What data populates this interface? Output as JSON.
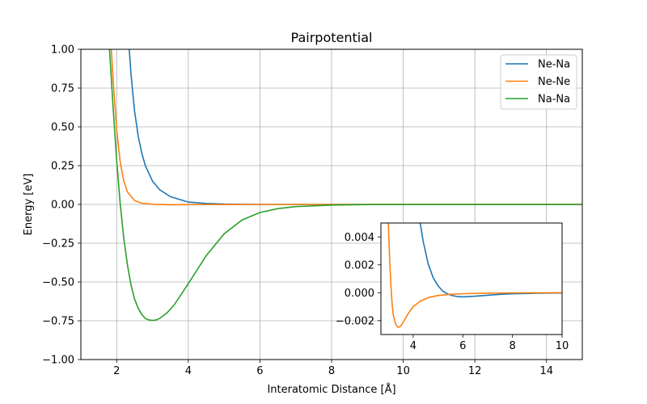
{
  "chart_data": [
    {
      "type": "line",
      "title": "Pairpotential",
      "xlabel": "Interatomic Distance [Å]",
      "ylabel": "Energy [eV]",
      "xlim": [
        1.0,
        15.0
      ],
      "ylim": [
        -1.0,
        1.0
      ],
      "xticks": [
        "2",
        "4",
        "6",
        "8",
        "10",
        "12",
        "14"
      ],
      "yticks": [
        "−1.00",
        "−0.75",
        "−0.50",
        "−0.25",
        "0.00",
        "0.25",
        "0.50",
        "0.75",
        "1.00"
      ],
      "grid": true,
      "legend_position": "top-right",
      "series": [
        {
          "name": "Ne-Na",
          "color": "#1f77b4",
          "x": [
            2.35,
            2.4,
            2.5,
            2.6,
            2.7,
            2.8,
            3.0,
            3.2,
            3.5,
            4.0,
            4.5,
            5.0,
            6.0,
            8.0,
            10.0,
            12.0,
            15.0
          ],
          "y": [
            1.0,
            0.84,
            0.6,
            0.44,
            0.33,
            0.25,
            0.15,
            0.095,
            0.05,
            0.015,
            0.006,
            0.002,
            0.0,
            0.0,
            0.0,
            0.0,
            0.0
          ]
        },
        {
          "name": "Ne-Ne",
          "color": "#ff7f0e",
          "x": [
            1.85,
            1.9,
            2.0,
            2.1,
            2.2,
            2.3,
            2.5,
            2.7,
            3.0,
            3.5,
            4.0,
            6.0,
            8.0,
            10.0,
            12.0,
            15.0
          ],
          "y": [
            1.0,
            0.8,
            0.48,
            0.27,
            0.15,
            0.08,
            0.025,
            0.008,
            0.001,
            -0.002,
            -0.001,
            0.0,
            0.0,
            0.0,
            0.0,
            0.0
          ]
        },
        {
          "name": "Na-Na",
          "color": "#2ca02c",
          "x": [
            1.8,
            1.9,
            2.0,
            2.1,
            2.2,
            2.3,
            2.4,
            2.5,
            2.6,
            2.7,
            2.8,
            2.9,
            3.0,
            3.1,
            3.2,
            3.4,
            3.6,
            3.8,
            4.0,
            4.5,
            5.0,
            5.5,
            6.0,
            6.5,
            7.0,
            8.0,
            9.0,
            10.0,
            12.0,
            15.0
          ],
          "y": [
            1.0,
            0.62,
            0.28,
            0.0,
            -0.22,
            -0.39,
            -0.52,
            -0.61,
            -0.67,
            -0.71,
            -0.735,
            -0.745,
            -0.748,
            -0.745,
            -0.735,
            -0.7,
            -0.65,
            -0.58,
            -0.51,
            -0.33,
            -0.19,
            -0.1,
            -0.052,
            -0.027,
            -0.014,
            -0.004,
            -0.001,
            0.0,
            0.0,
            0.0
          ]
        }
      ]
    },
    {
      "type": "line",
      "title": "",
      "xlim": [
        2.7,
        10.0
      ],
      "ylim": [
        -0.003,
        0.005
      ],
      "xticks": [
        "4",
        "6",
        "8",
        "10"
      ],
      "yticks": [
        "−0.002",
        "0.000",
        "0.002",
        "0.004"
      ],
      "grid": false,
      "series": [
        {
          "color": "#1f77b4",
          "x": [
            4.28,
            4.4,
            4.6,
            4.8,
            5.0,
            5.2,
            5.4,
            5.6,
            5.8,
            6.0,
            6.5,
            7.0,
            7.5,
            8.0,
            9.0,
            10.0
          ],
          "y": [
            0.005,
            0.0037,
            0.0021,
            0.0011,
            0.0005,
            0.0001,
            -0.0001,
            -0.00022,
            -0.00028,
            -0.0003,
            -0.00025,
            -0.00018,
            -0.00012,
            -8e-05,
            -4e-05,
            -2e-05
          ]
        },
        {
          "color": "#ff7f0e",
          "x": [
            3.0,
            3.05,
            3.1,
            3.15,
            3.2,
            3.3,
            3.4,
            3.5,
            3.6,
            3.8,
            4.0,
            4.3,
            4.6,
            5.0,
            5.5,
            6.0,
            7.0,
            8.0,
            9.0,
            10.0
          ],
          "y": [
            0.005,
            0.0025,
            0.0006,
            -0.0008,
            -0.0016,
            -0.0023,
            -0.0025,
            -0.0024,
            -0.0021,
            -0.0015,
            -0.001,
            -0.0006,
            -0.00035,
            -0.0002,
            -0.00012,
            -7e-05,
            -3e-05,
            -1.5e-05,
            -8e-06,
            -4e-06
          ]
        }
      ]
    }
  ]
}
